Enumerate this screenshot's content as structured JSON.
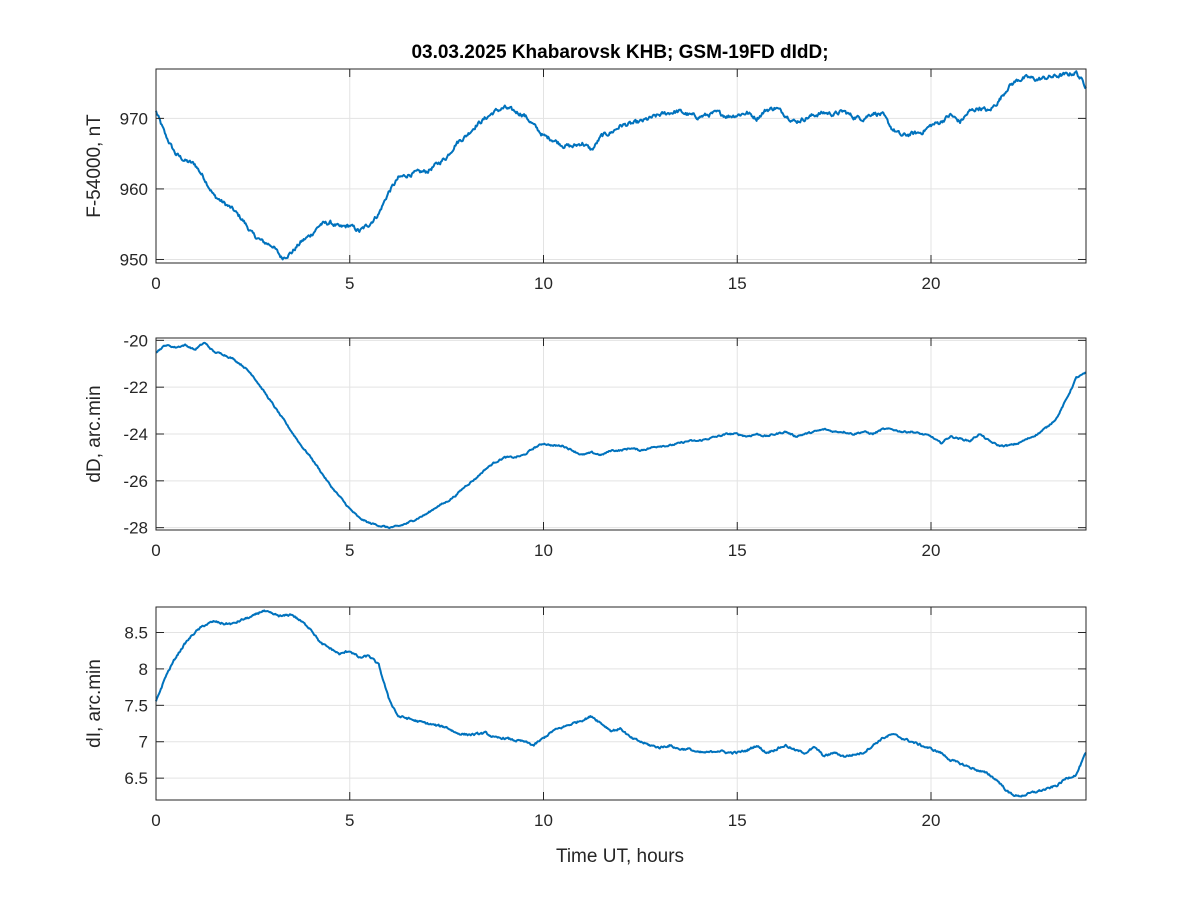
{
  "figure": {
    "title": "03.03.2025  Khabarovsk KHB; GSM-19FD dIdD;",
    "xlabel": "Time UT, hours",
    "line_color": "#0072BD",
    "grid_color": "#e3e3e3",
    "axis_color": "#262626"
  },
  "chart_data": [
    {
      "type": "line",
      "name": "panel-F",
      "ylabel": "F-54000, nT",
      "xlim": [
        0,
        24
      ],
      "ylim": [
        949.5,
        977
      ],
      "xticks": [
        0,
        5,
        10,
        15,
        20
      ],
      "yticks": [
        950,
        960,
        970
      ],
      "ytick_labels": [
        "950",
        "960",
        "970"
      ],
      "grid": true,
      "noise": 0.5,
      "x": [
        0,
        0.25,
        0.5,
        0.75,
        1.0,
        1.25,
        1.5,
        1.75,
        2.0,
        2.25,
        2.5,
        2.75,
        3.0,
        3.25,
        3.5,
        3.75,
        4.0,
        4.25,
        4.5,
        4.75,
        5.0,
        5.25,
        5.5,
        5.75,
        6.0,
        6.25,
        6.5,
        6.75,
        7.0,
        7.25,
        7.5,
        7.75,
        8.0,
        8.25,
        8.5,
        8.75,
        9.0,
        9.25,
        9.5,
        9.75,
        10.0,
        10.25,
        10.5,
        10.75,
        11.0,
        11.25,
        11.5,
        11.75,
        12.0,
        12.25,
        12.5,
        12.75,
        13.0,
        13.25,
        13.5,
        13.75,
        14.0,
        14.25,
        14.5,
        14.75,
        15.0,
        15.25,
        15.5,
        15.75,
        16.0,
        16.25,
        16.5,
        16.75,
        17.0,
        17.25,
        17.5,
        17.75,
        18.0,
        18.25,
        18.5,
        18.75,
        19.0,
        19.25,
        19.5,
        19.75,
        20.0,
        20.25,
        20.5,
        20.75,
        21.0,
        21.25,
        21.5,
        21.75,
        22.0,
        22.25,
        22.5,
        22.75,
        23.0,
        23.25,
        23.5,
        23.75,
        24.0
      ],
      "y": [
        971.0,
        967.5,
        965.0,
        964.0,
        963.5,
        961.5,
        959.0,
        958.0,
        957.0,
        955.5,
        953.5,
        952.5,
        952.0,
        950.2,
        951.0,
        952.5,
        953.5,
        955.0,
        955.2,
        954.5,
        954.8,
        954.0,
        955.0,
        956.5,
        959.5,
        961.5,
        962.0,
        962.3,
        962.5,
        963.5,
        964.5,
        966.5,
        967.5,
        969.0,
        970.0,
        971.0,
        971.5,
        971.0,
        970.5,
        969.0,
        967.5,
        967.0,
        966.2,
        966.0,
        966.5,
        965.5,
        967.5,
        968.0,
        969.0,
        969.2,
        969.5,
        970.0,
        970.5,
        970.8,
        971.0,
        970.5,
        970.2,
        970.5,
        970.8,
        970.3,
        970.5,
        970.8,
        970.0,
        971.2,
        971.5,
        970.5,
        969.5,
        970.0,
        970.5,
        970.8,
        970.6,
        971.0,
        970.2,
        970.0,
        970.8,
        970.5,
        968.5,
        967.5,
        967.8,
        968.0,
        969.0,
        969.5,
        970.5,
        969.5,
        971.0,
        971.5,
        971.0,
        972.5,
        974.5,
        975.5,
        975.8,
        975.5,
        975.8,
        976.0,
        976.2,
        976.5,
        974.5
      ]
    },
    {
      "type": "line",
      "name": "panel-D",
      "ylabel": "dD, arc.min",
      "xlim": [
        0,
        24
      ],
      "ylim": [
        -28.1,
        -19.9
      ],
      "xticks": [
        0,
        5,
        10,
        15,
        20
      ],
      "yticks": [
        -28,
        -26,
        -24,
        -22,
        -20
      ],
      "ytick_labels": [
        "-28",
        "-26",
        "-24",
        "-22",
        "-20"
      ],
      "grid": true,
      "noise": 0.06,
      "x": [
        0,
        0.25,
        0.5,
        0.75,
        1.0,
        1.25,
        1.5,
        1.75,
        2.0,
        2.25,
        2.5,
        2.75,
        3.0,
        3.25,
        3.5,
        3.75,
        4.0,
        4.25,
        4.5,
        4.75,
        5.0,
        5.25,
        5.5,
        5.75,
        6.0,
        6.25,
        6.5,
        6.75,
        7.0,
        7.25,
        7.5,
        7.75,
        8.0,
        8.25,
        8.5,
        8.75,
        9.0,
        9.25,
        9.5,
        9.75,
        10.0,
        10.25,
        10.5,
        10.75,
        11.0,
        11.25,
        11.5,
        11.75,
        12.0,
        12.25,
        12.5,
        12.75,
        13.0,
        13.25,
        13.5,
        13.75,
        14.0,
        14.25,
        14.5,
        14.75,
        15.0,
        15.25,
        15.5,
        15.75,
        16.0,
        16.25,
        16.5,
        16.75,
        17.0,
        17.25,
        17.5,
        17.75,
        18.0,
        18.25,
        18.5,
        18.75,
        19.0,
        19.25,
        19.5,
        19.75,
        20.0,
        20.25,
        20.5,
        20.75,
        21.0,
        21.25,
        21.5,
        21.75,
        22.0,
        22.25,
        22.5,
        22.75,
        23.0,
        23.25,
        23.5,
        23.75,
        24.0
      ],
      "y": [
        -20.5,
        -20.2,
        -20.3,
        -20.2,
        -20.4,
        -20.1,
        -20.5,
        -20.6,
        -20.8,
        -21.1,
        -21.5,
        -22.1,
        -22.7,
        -23.3,
        -23.9,
        -24.5,
        -25.0,
        -25.6,
        -26.2,
        -26.7,
        -27.2,
        -27.6,
        -27.8,
        -27.9,
        -28.0,
        -27.95,
        -27.8,
        -27.6,
        -27.4,
        -27.1,
        -26.9,
        -26.6,
        -26.2,
        -25.9,
        -25.5,
        -25.2,
        -25.0,
        -25.0,
        -24.9,
        -24.6,
        -24.4,
        -24.5,
        -24.5,
        -24.7,
        -24.9,
        -24.8,
        -24.9,
        -24.7,
        -24.7,
        -24.6,
        -24.7,
        -24.6,
        -24.5,
        -24.5,
        -24.4,
        -24.3,
        -24.3,
        -24.2,
        -24.1,
        -24.0,
        -24.0,
        -24.1,
        -24.0,
        -24.1,
        -24.0,
        -23.9,
        -24.1,
        -24.0,
        -23.9,
        -23.8,
        -23.9,
        -23.9,
        -24.0,
        -23.9,
        -24.0,
        -23.8,
        -23.8,
        -23.9,
        -23.9,
        -24.0,
        -24.1,
        -24.4,
        -24.1,
        -24.2,
        -24.3,
        -24.0,
        -24.3,
        -24.5,
        -24.5,
        -24.4,
        -24.2,
        -24.0,
        -23.7,
        -23.3,
        -22.5,
        -21.6,
        -21.4
      ]
    },
    {
      "type": "line",
      "name": "panel-I",
      "ylabel": "dI, arc.min",
      "xlim": [
        0,
        24
      ],
      "ylim": [
        6.2,
        8.85
      ],
      "xticks": [
        0,
        5,
        10,
        15,
        20
      ],
      "yticks": [
        6.5,
        7,
        7.5,
        8,
        8.5
      ],
      "ytick_labels": [
        "6.5",
        "7",
        "7.5",
        "8",
        "8.5"
      ],
      "grid": true,
      "noise": 0.025,
      "x": [
        0,
        0.25,
        0.5,
        0.75,
        1.0,
        1.25,
        1.5,
        1.75,
        2.0,
        2.25,
        2.5,
        2.75,
        3.0,
        3.25,
        3.5,
        3.75,
        4.0,
        4.25,
        4.5,
        4.75,
        5.0,
        5.25,
        5.5,
        5.75,
        6.0,
        6.25,
        6.5,
        6.75,
        7.0,
        7.25,
        7.5,
        7.75,
        8.0,
        8.25,
        8.5,
        8.75,
        9.0,
        9.25,
        9.5,
        9.75,
        10.0,
        10.25,
        10.5,
        10.75,
        11.0,
        11.25,
        11.5,
        11.75,
        12.0,
        12.25,
        12.5,
        12.75,
        13.0,
        13.25,
        13.5,
        13.75,
        14.0,
        14.25,
        14.5,
        14.75,
        15.0,
        15.25,
        15.5,
        15.75,
        16.0,
        16.25,
        16.5,
        16.75,
        17.0,
        17.25,
        17.5,
        17.75,
        18.0,
        18.25,
        18.5,
        18.75,
        19.0,
        19.25,
        19.5,
        19.75,
        20.0,
        20.25,
        20.5,
        20.75,
        21.0,
        21.25,
        21.5,
        21.75,
        22.0,
        22.25,
        22.5,
        22.75,
        23.0,
        23.25,
        23.5,
        23.75,
        24.0
      ],
      "y": [
        7.55,
        7.9,
        8.15,
        8.35,
        8.5,
        8.6,
        8.65,
        8.62,
        8.62,
        8.68,
        8.72,
        8.8,
        8.75,
        8.72,
        8.75,
        8.65,
        8.55,
        8.35,
        8.28,
        8.2,
        8.25,
        8.15,
        8.18,
        8.05,
        7.6,
        7.35,
        7.32,
        7.28,
        7.25,
        7.22,
        7.2,
        7.12,
        7.1,
        7.1,
        7.12,
        7.05,
        7.05,
        7.02,
        7.0,
        6.95,
        7.05,
        7.15,
        7.2,
        7.25,
        7.3,
        7.35,
        7.25,
        7.15,
        7.18,
        7.05,
        7.0,
        6.95,
        6.92,
        6.95,
        6.9,
        6.9,
        6.85,
        6.85,
        6.88,
        6.85,
        6.85,
        6.88,
        6.95,
        6.85,
        6.9,
        6.95,
        6.88,
        6.85,
        6.92,
        6.8,
        6.85,
        6.8,
        6.82,
        6.85,
        6.95,
        7.05,
        7.1,
        7.05,
        7.0,
        6.95,
        6.9,
        6.85,
        6.75,
        6.7,
        6.65,
        6.6,
        6.55,
        6.45,
        6.3,
        6.25,
        6.28,
        6.32,
        6.35,
        6.4,
        6.5,
        6.55,
        6.85
      ]
    }
  ]
}
